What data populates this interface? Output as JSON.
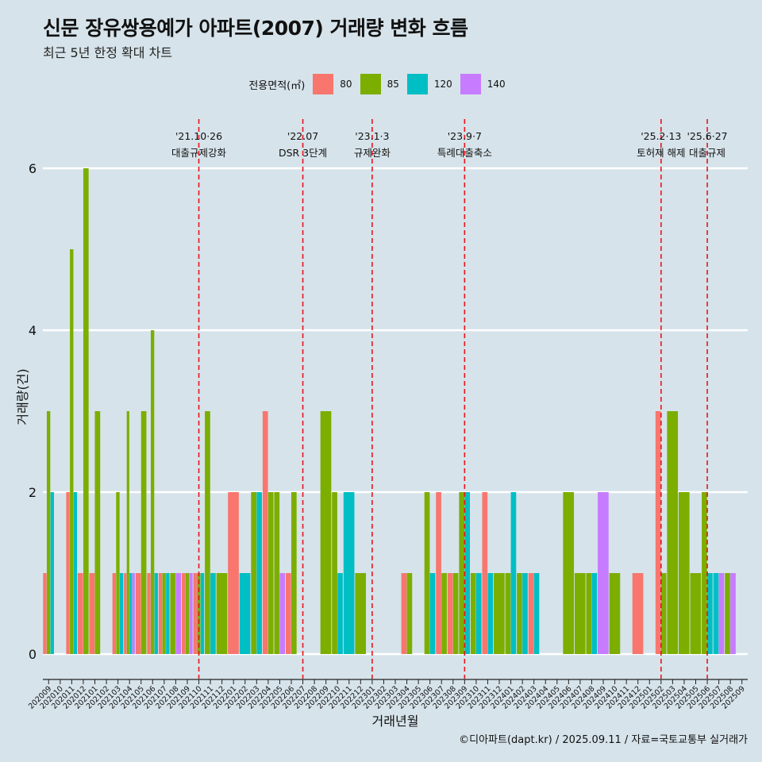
{
  "title": "신문 장유쌍용예가 아파트(2007) 거래량 변화 흐름",
  "subtitle": "최근 5년 한정 확대 차트",
  "legend": {
    "title": "전용면적(㎡)",
    "items": [
      {
        "label": "80",
        "color": "#F8766D"
      },
      {
        "label": "85",
        "color": "#7CAE00"
      },
      {
        "label": "120",
        "color": "#00BFC4"
      },
      {
        "label": "140",
        "color": "#C77CFF"
      }
    ]
  },
  "caption": "©디아파트(dapt.kr) / 2025.09.11 / 자료=국토교통부 실거래가",
  "chart_data": {
    "type": "bar",
    "xlabel": "거래년월",
    "ylabel": "거래량(건)",
    "ylim": [
      0,
      6
    ],
    "yticks": [
      0,
      2,
      4,
      6
    ],
    "grid": true,
    "legend_position": "top",
    "categories": [
      "202009",
      "202010",
      "202011",
      "202012",
      "202101",
      "202102",
      "202103",
      "202104",
      "202105",
      "202106",
      "202107",
      "202108",
      "202109",
      "202110",
      "202111",
      "202112",
      "202201",
      "202202",
      "202203",
      "202204",
      "202205",
      "202206",
      "202207",
      "202208",
      "202209",
      "202210",
      "202211",
      "202212",
      "202301",
      "202302",
      "202303",
      "202304",
      "202305",
      "202306",
      "202307",
      "202308",
      "202309",
      "202310",
      "202311",
      "202312",
      "202401",
      "202402",
      "202403",
      "202404",
      "202405",
      "202406",
      "202407",
      "202408",
      "202409",
      "202410",
      "202411",
      "202412",
      "202501",
      "202502",
      "202503",
      "202504",
      "202505",
      "202506",
      "202507",
      "202508",
      "202509"
    ],
    "series": [
      {
        "name": "80",
        "values": [
          1,
          0,
          2,
          1,
          1,
          0,
          1,
          1,
          1,
          1,
          1,
          0,
          1,
          1,
          0,
          0,
          2,
          0,
          0,
          3,
          0,
          1,
          0,
          0,
          0,
          0,
          0,
          0,
          0,
          0,
          0,
          1,
          0,
          0,
          2,
          1,
          0,
          0,
          2,
          0,
          0,
          0,
          1,
          0,
          0,
          0,
          0,
          0,
          0,
          0,
          0,
          1,
          0,
          3,
          0,
          0,
          0,
          0,
          0,
          0,
          0
        ]
      },
      {
        "name": "85",
        "values": [
          3,
          0,
          5,
          6,
          3,
          0,
          2,
          3,
          3,
          4,
          1,
          1,
          1,
          1,
          3,
          1,
          0,
          0,
          2,
          2,
          2,
          2,
          0,
          0,
          3,
          2,
          0,
          1,
          0,
          0,
          0,
          1,
          0,
          2,
          1,
          1,
          2,
          1,
          0,
          1,
          1,
          1,
          0,
          0,
          0,
          2,
          1,
          1,
          0,
          1,
          0,
          0,
          0,
          1,
          3,
          2,
          1,
          2,
          0,
          1,
          0
        ]
      },
      {
        "name": "120",
        "values": [
          2,
          0,
          2,
          0,
          0,
          0,
          1,
          1,
          0,
          1,
          1,
          0,
          0,
          1,
          1,
          0,
          0,
          1,
          2,
          0,
          0,
          0,
          0,
          0,
          0,
          1,
          2,
          0,
          0,
          0,
          0,
          0,
          0,
          1,
          0,
          0,
          2,
          1,
          1,
          0,
          2,
          1,
          1,
          0,
          0,
          0,
          0,
          1,
          0,
          0,
          0,
          0,
          0,
          0,
          0,
          0,
          0,
          1,
          1,
          0,
          0
        ]
      },
      {
        "name": "140",
        "values": [
          0,
          0,
          0,
          0,
          0,
          0,
          0,
          1,
          0,
          0,
          0,
          1,
          1,
          0,
          0,
          0,
          0,
          0,
          0,
          0,
          1,
          0,
          0,
          0,
          0,
          0,
          0,
          0,
          0,
          0,
          0,
          0,
          0,
          0,
          0,
          0,
          0,
          0,
          0,
          0,
          0,
          0,
          0,
          0,
          0,
          0,
          0,
          0,
          2,
          0,
          0,
          0,
          0,
          0,
          0,
          0,
          0,
          0,
          1,
          1,
          0
        ]
      }
    ],
    "annotations": [
      {
        "at": "202110",
        "date": "'21.10·26",
        "label": "대출규제강화"
      },
      {
        "at": "202207",
        "date": "'22.07",
        "label": "DSR 3단계"
      },
      {
        "at": "202301",
        "date": "'23.1·3",
        "label": "규제완화"
      },
      {
        "at": "202309",
        "date": "'23.9·7",
        "label": "특례대출축소"
      },
      {
        "at": "202502",
        "date": "'25.2·13",
        "label": "토허제 해제"
      },
      {
        "at": "202506",
        "date": "'25.6·27",
        "label": "대출규제"
      }
    ]
  }
}
